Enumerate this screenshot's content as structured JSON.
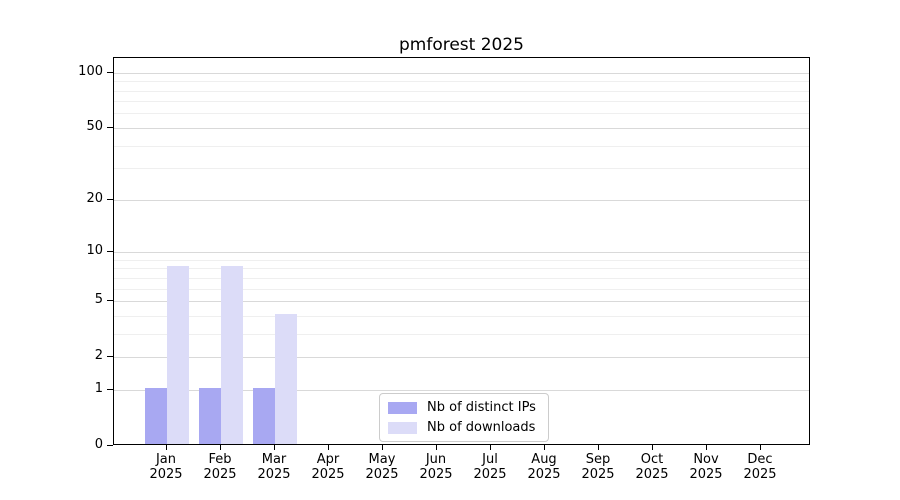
{
  "chart_data": {
    "type": "bar",
    "title": "pmforest 2025",
    "categories": [
      "Jan",
      "Feb",
      "Mar",
      "Apr",
      "May",
      "Jun",
      "Jul",
      "Aug",
      "Sep",
      "Oct",
      "Nov",
      "Dec"
    ],
    "category_sublabel": "2025",
    "series": [
      {
        "name": "Nb of distinct IPs",
        "color": "#a8a8f2",
        "values": [
          1,
          1,
          1,
          0,
          0,
          0,
          0,
          0,
          0,
          0,
          0,
          0
        ]
      },
      {
        "name": "Nb of downloads",
        "color": "#dcdcf8",
        "values": [
          8,
          8,
          4,
          0,
          0,
          0,
          0,
          0,
          0,
          0,
          0,
          0
        ]
      }
    ],
    "y_scale": "log1p",
    "y_axis": {
      "major_ticks": [
        100,
        50,
        20,
        10,
        5,
        2,
        1,
        0
      ],
      "minor_gridlines": [
        90,
        80,
        70,
        60,
        40,
        30,
        9,
        8,
        7,
        6,
        4,
        3
      ],
      "min": 0,
      "max": 120
    },
    "x_axis": {
      "tick_style": "month-over-year"
    },
    "legend": {
      "position": "bottom-center",
      "border_color": "#cccccc"
    },
    "grid": "horizontal",
    "axis_color": "#000000"
  }
}
